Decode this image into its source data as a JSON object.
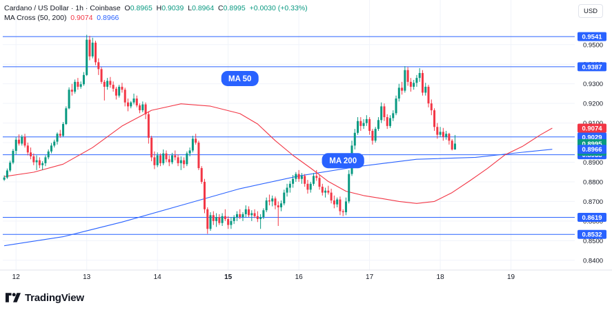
{
  "header": {
    "symbol": "Cardano / US Dollar · 1h · Coinbase",
    "o_label": "O",
    "o_value": "0.8965",
    "h_label": "H",
    "h_value": "0.9039",
    "l_label": "L",
    "l_value": "0.8964",
    "c_label": "C",
    "c_value": "0.8995",
    "change": "+0.0030 (+0.33%)",
    "indicator": "MA Cross (50, 200)",
    "ma50_value": "0.9074",
    "ma200_value": "0.8966"
  },
  "currency_button": "USD",
  "brand": "TradingView",
  "colors": {
    "up": "#089981",
    "down": "#f23645",
    "ma50": "#f23645",
    "ma200": "#2962ff",
    "level_line": "#2962ff",
    "badge_blue": "#2962ff",
    "badge_red": "#f23645",
    "grid": "#f0f3fa"
  },
  "chart_data": {
    "type": "candlestick",
    "ylim": [
      0.835,
      0.958
    ],
    "y_ticks": [
      "0.9500",
      "0.9400",
      "0.9300",
      "0.9200",
      "0.9100",
      "0.9000",
      "0.8900",
      "0.8800",
      "0.8700",
      "0.8600",
      "0.8500",
      "0.8400"
    ],
    "x_ticks": [
      {
        "label": "12",
        "i": 4,
        "bold": false
      },
      {
        "label": "13",
        "i": 28,
        "bold": false
      },
      {
        "label": "14",
        "i": 52,
        "bold": false
      },
      {
        "label": "15",
        "i": 76,
        "bold": true
      },
      {
        "label": "16",
        "i": 100,
        "bold": false
      },
      {
        "label": "17",
        "i": 124,
        "bold": false
      },
      {
        "label": "18",
        "i": 148,
        "bold": false
      },
      {
        "label": "19",
        "i": 172,
        "bold": false
      }
    ],
    "candles_per_day": 24,
    "first_candle_offset": 0,
    "annotations": [
      {
        "text": "MA 50",
        "i": 80,
        "y": 0.9327
      },
      {
        "text": "MA 200",
        "i": 115,
        "y": 0.8908
      }
    ],
    "horizontal_levels": [
      {
        "value": 0.9541,
        "label": "0.9541"
      },
      {
        "value": 0.9387,
        "label": "0.9387"
      },
      {
        "value": 0.9029,
        "label": "0.9029"
      },
      {
        "value": 0.8938,
        "label": "0.8938"
      },
      {
        "value": 0.8619,
        "label": "0.8619"
      },
      {
        "value": 0.8532,
        "label": "0.8532"
      }
    ],
    "price_badges": [
      {
        "value": 0.9074,
        "label": "0.9074",
        "color": "red"
      },
      {
        "value": 0.8995,
        "label": "0.8995",
        "color": "green",
        "sub": "00:52"
      },
      {
        "value": 0.8966,
        "label": "0.8966",
        "color": "blue"
      }
    ],
    "ohlc": [
      [
        0.8811,
        0.8833,
        0.8805,
        0.8822
      ],
      [
        0.8822,
        0.8868,
        0.8815,
        0.8858
      ],
      [
        0.8858,
        0.8908,
        0.885,
        0.8898
      ],
      [
        0.8898,
        0.8968,
        0.889,
        0.8958
      ],
      [
        0.8958,
        0.9028,
        0.894,
        0.9015
      ],
      [
        0.9015,
        0.9042,
        0.8985,
        0.8995
      ],
      [
        0.8995,
        0.904,
        0.8985,
        0.903
      ],
      [
        0.903,
        0.9045,
        0.8975,
        0.8985
      ],
      [
        0.8985,
        0.9,
        0.8935,
        0.895
      ],
      [
        0.895,
        0.8975,
        0.8915,
        0.893
      ],
      [
        0.893,
        0.8945,
        0.8885,
        0.89
      ],
      [
        0.89,
        0.8935,
        0.886,
        0.891
      ],
      [
        0.891,
        0.8925,
        0.887,
        0.8885
      ],
      [
        0.8885,
        0.8905,
        0.886,
        0.8895
      ],
      [
        0.8895,
        0.8935,
        0.888,
        0.8925
      ],
      [
        0.8925,
        0.8965,
        0.8915,
        0.8955
      ],
      [
        0.8955,
        0.8998,
        0.8945,
        0.8985
      ],
      [
        0.8985,
        0.9015,
        0.8975,
        0.9005
      ],
      [
        0.9005,
        0.9052,
        0.899,
        0.9045
      ],
      [
        0.9045,
        0.9065,
        0.9025,
        0.9035
      ],
      [
        0.9035,
        0.9105,
        0.903,
        0.9095
      ],
      [
        0.9095,
        0.9185,
        0.909,
        0.9175
      ],
      [
        0.9175,
        0.9282,
        0.917,
        0.927
      ],
      [
        0.927,
        0.93,
        0.924,
        0.926
      ],
      [
        0.926,
        0.9322,
        0.925,
        0.931
      ],
      [
        0.931,
        0.933,
        0.927,
        0.9285
      ],
      [
        0.9285,
        0.9312,
        0.9275,
        0.9298
      ],
      [
        0.9298,
        0.936,
        0.929,
        0.9345
      ],
      [
        0.9345,
        0.955,
        0.934,
        0.9525
      ],
      [
        0.9525,
        0.9545,
        0.942,
        0.944
      ],
      [
        0.944,
        0.9535,
        0.943,
        0.951
      ],
      [
        0.951,
        0.952,
        0.9395,
        0.941
      ],
      [
        0.941,
        0.943,
        0.9345,
        0.9375
      ],
      [
        0.9375,
        0.9385,
        0.93,
        0.931
      ],
      [
        0.931,
        0.932,
        0.9215,
        0.9285
      ],
      [
        0.9285,
        0.933,
        0.927,
        0.9315
      ],
      [
        0.9315,
        0.9335,
        0.928,
        0.9295
      ],
      [
        0.9295,
        0.9312,
        0.926,
        0.9275
      ],
      [
        0.9275,
        0.9285,
        0.922,
        0.924
      ],
      [
        0.924,
        0.9295,
        0.923,
        0.9285
      ],
      [
        0.9285,
        0.9305,
        0.9255,
        0.927
      ],
      [
        0.927,
        0.928,
        0.9185,
        0.9205
      ],
      [
        0.9205,
        0.9225,
        0.916,
        0.9185
      ],
      [
        0.9185,
        0.9212,
        0.9175,
        0.9205
      ],
      [
        0.9205,
        0.925,
        0.9195,
        0.9225
      ],
      [
        0.9225,
        0.924,
        0.918,
        0.919
      ],
      [
        0.919,
        0.92,
        0.915,
        0.9165
      ],
      [
        0.9165,
        0.921,
        0.9155,
        0.9195
      ],
      [
        0.9195,
        0.9205,
        0.912,
        0.9145
      ],
      [
        0.9145,
        0.916,
        0.8995,
        0.9025
      ],
      [
        0.9025,
        0.9035,
        0.8905,
        0.8925
      ],
      [
        0.8925,
        0.8955,
        0.8865,
        0.8885
      ],
      [
        0.8885,
        0.895,
        0.8875,
        0.8935
      ],
      [
        0.8935,
        0.8945,
        0.888,
        0.8895
      ],
      [
        0.8895,
        0.8965,
        0.8885,
        0.8945
      ],
      [
        0.8945,
        0.896,
        0.89,
        0.8915
      ],
      [
        0.8915,
        0.8935,
        0.888,
        0.89
      ],
      [
        0.89,
        0.8948,
        0.889,
        0.8935
      ],
      [
        0.8935,
        0.896,
        0.891,
        0.8925
      ],
      [
        0.8925,
        0.894,
        0.888,
        0.8895
      ],
      [
        0.8895,
        0.893,
        0.886,
        0.891
      ],
      [
        0.891,
        0.8925,
        0.887,
        0.889
      ],
      [
        0.889,
        0.8955,
        0.888,
        0.8945
      ],
      [
        0.8945,
        0.8975,
        0.893,
        0.896
      ],
      [
        0.896,
        0.9035,
        0.895,
        0.902
      ],
      [
        0.902,
        0.9045,
        0.899,
        0.9
      ],
      [
        0.9,
        0.901,
        0.886,
        0.887
      ],
      [
        0.887,
        0.888,
        0.879,
        0.88
      ],
      [
        0.88,
        0.8815,
        0.864,
        0.866
      ],
      [
        0.866,
        0.867,
        0.8535,
        0.856
      ],
      [
        0.856,
        0.8645,
        0.855,
        0.863
      ],
      [
        0.863,
        0.865,
        0.858,
        0.86
      ],
      [
        0.86,
        0.864,
        0.857,
        0.862
      ],
      [
        0.862,
        0.8635,
        0.858,
        0.859
      ],
      [
        0.859,
        0.864,
        0.8575,
        0.8625
      ],
      [
        0.8625,
        0.866,
        0.86,
        0.861
      ],
      [
        0.861,
        0.8625,
        0.856,
        0.858
      ],
      [
        0.858,
        0.862,
        0.856,
        0.86
      ],
      [
        0.86,
        0.863,
        0.8585,
        0.862
      ],
      [
        0.862,
        0.865,
        0.86,
        0.8635
      ],
      [
        0.8635,
        0.866,
        0.861,
        0.862
      ],
      [
        0.862,
        0.8645,
        0.86,
        0.8635
      ],
      [
        0.8635,
        0.868,
        0.862,
        0.866
      ],
      [
        0.866,
        0.8675,
        0.862,
        0.863
      ],
      [
        0.863,
        0.8655,
        0.86,
        0.864
      ],
      [
        0.864,
        0.866,
        0.8615,
        0.8625
      ],
      [
        0.8625,
        0.865,
        0.8595,
        0.861
      ],
      [
        0.861,
        0.8635,
        0.856,
        0.862
      ],
      [
        0.862,
        0.8665,
        0.861,
        0.8655
      ],
      [
        0.8655,
        0.872,
        0.8645,
        0.8705
      ],
      [
        0.8705,
        0.8735,
        0.868,
        0.87
      ],
      [
        0.87,
        0.873,
        0.8675,
        0.8715
      ],
      [
        0.8715,
        0.8725,
        0.866,
        0.868
      ],
      [
        0.868,
        0.87,
        0.8575,
        0.867
      ],
      [
        0.867,
        0.8705,
        0.865,
        0.869
      ],
      [
        0.869,
        0.876,
        0.868,
        0.8745
      ],
      [
        0.8745,
        0.879,
        0.8725,
        0.877
      ],
      [
        0.877,
        0.8805,
        0.8745,
        0.879
      ],
      [
        0.879,
        0.8835,
        0.877,
        0.8815
      ],
      [
        0.8815,
        0.885,
        0.88,
        0.884
      ],
      [
        0.884,
        0.886,
        0.88,
        0.8815
      ],
      [
        0.8815,
        0.8845,
        0.879,
        0.883
      ],
      [
        0.883,
        0.884,
        0.8775,
        0.879
      ],
      [
        0.879,
        0.881,
        0.874,
        0.876
      ],
      [
        0.876,
        0.88,
        0.8745,
        0.879
      ],
      [
        0.879,
        0.8845,
        0.878,
        0.883
      ],
      [
        0.883,
        0.886,
        0.8805,
        0.882
      ],
      [
        0.882,
        0.8835,
        0.876,
        0.8775
      ],
      [
        0.8775,
        0.879,
        0.873,
        0.8745
      ],
      [
        0.8745,
        0.877,
        0.872,
        0.8755
      ],
      [
        0.8755,
        0.878,
        0.8735,
        0.8745
      ],
      [
        0.8745,
        0.8765,
        0.869,
        0.8705
      ],
      [
        0.8705,
        0.873,
        0.8665,
        0.8685
      ],
      [
        0.8685,
        0.872,
        0.867,
        0.871
      ],
      [
        0.871,
        0.8725,
        0.863,
        0.865
      ],
      [
        0.865,
        0.866,
        0.8625,
        0.8645
      ],
      [
        0.8645,
        0.872,
        0.863,
        0.87
      ],
      [
        0.87,
        0.886,
        0.869,
        0.884
      ],
      [
        0.884,
        0.901,
        0.883,
        0.8985
      ],
      [
        0.8985,
        0.907,
        0.8965,
        0.905
      ],
      [
        0.905,
        0.913,
        0.904,
        0.911
      ],
      [
        0.911,
        0.913,
        0.906,
        0.9085
      ],
      [
        0.9085,
        0.912,
        0.907,
        0.91
      ],
      [
        0.91,
        0.914,
        0.9085,
        0.912
      ],
      [
        0.912,
        0.913,
        0.904,
        0.906
      ],
      [
        0.906,
        0.907,
        0.899,
        0.901
      ],
      [
        0.901,
        0.908,
        0.9,
        0.907
      ],
      [
        0.907,
        0.913,
        0.906,
        0.9115
      ],
      [
        0.9115,
        0.9205,
        0.91,
        0.9185
      ],
      [
        0.9185,
        0.92,
        0.911,
        0.913
      ],
      [
        0.913,
        0.9145,
        0.907,
        0.9085
      ],
      [
        0.9085,
        0.914,
        0.9075,
        0.9125
      ],
      [
        0.9125,
        0.9165,
        0.911,
        0.915
      ],
      [
        0.915,
        0.924,
        0.914,
        0.9225
      ],
      [
        0.9225,
        0.93,
        0.921,
        0.928
      ],
      [
        0.928,
        0.931,
        0.9245,
        0.9265
      ],
      [
        0.9265,
        0.939,
        0.9255,
        0.937
      ],
      [
        0.937,
        0.9385,
        0.929,
        0.931
      ],
      [
        0.931,
        0.933,
        0.926,
        0.9285
      ],
      [
        0.9285,
        0.932,
        0.927,
        0.9305
      ],
      [
        0.9305,
        0.9345,
        0.9285,
        0.933
      ],
      [
        0.933,
        0.938,
        0.931,
        0.9355
      ],
      [
        0.9355,
        0.937,
        0.924,
        0.9255
      ],
      [
        0.9255,
        0.9305,
        0.924,
        0.9285
      ],
      [
        0.9285,
        0.9295,
        0.918,
        0.92
      ],
      [
        0.92,
        0.922,
        0.914,
        0.9165
      ],
      [
        0.9165,
        0.9175,
        0.906,
        0.908
      ],
      [
        0.908,
        0.91,
        0.902,
        0.904
      ],
      [
        0.904,
        0.908,
        0.903,
        0.9055
      ],
      [
        0.9055,
        0.9075,
        0.901,
        0.903
      ],
      [
        0.903,
        0.906,
        0.9015,
        0.9045
      ],
      [
        0.9045,
        0.905,
        0.899,
        0.901
      ],
      [
        0.901,
        0.9018,
        0.896,
        0.8965
      ],
      [
        0.8965,
        0.9039,
        0.8964,
        0.8995
      ]
    ],
    "ma50": [
      [
        0,
        0.8827
      ],
      [
        10,
        0.8849
      ],
      [
        20,
        0.889
      ],
      [
        30,
        0.8975
      ],
      [
        40,
        0.9085
      ],
      [
        50,
        0.9165
      ],
      [
        60,
        0.9198
      ],
      [
        70,
        0.9186
      ],
      [
        80,
        0.9148
      ],
      [
        86,
        0.9095
      ],
      [
        92,
        0.901
      ],
      [
        98,
        0.8935
      ],
      [
        104,
        0.887
      ],
      [
        110,
        0.8802
      ],
      [
        116,
        0.8752
      ],
      [
        122,
        0.873
      ],
      [
        128,
        0.8715
      ],
      [
        134,
        0.87
      ],
      [
        140,
        0.869
      ],
      [
        146,
        0.87
      ],
      [
        152,
        0.8745
      ],
      [
        158,
        0.8805
      ],
      [
        164,
        0.8868
      ],
      [
        170,
        0.8938
      ],
      [
        176,
        0.8982
      ],
      [
        182,
        0.904
      ],
      [
        186,
        0.9074
      ]
    ],
    "ma200": [
      [
        0,
        0.8474
      ],
      [
        20,
        0.852
      ],
      [
        40,
        0.8595
      ],
      [
        60,
        0.868
      ],
      [
        80,
        0.8765
      ],
      [
        100,
        0.883
      ],
      [
        120,
        0.8878
      ],
      [
        140,
        0.8915
      ],
      [
        160,
        0.8925
      ],
      [
        176,
        0.8951
      ],
      [
        186,
        0.8966
      ]
    ]
  }
}
